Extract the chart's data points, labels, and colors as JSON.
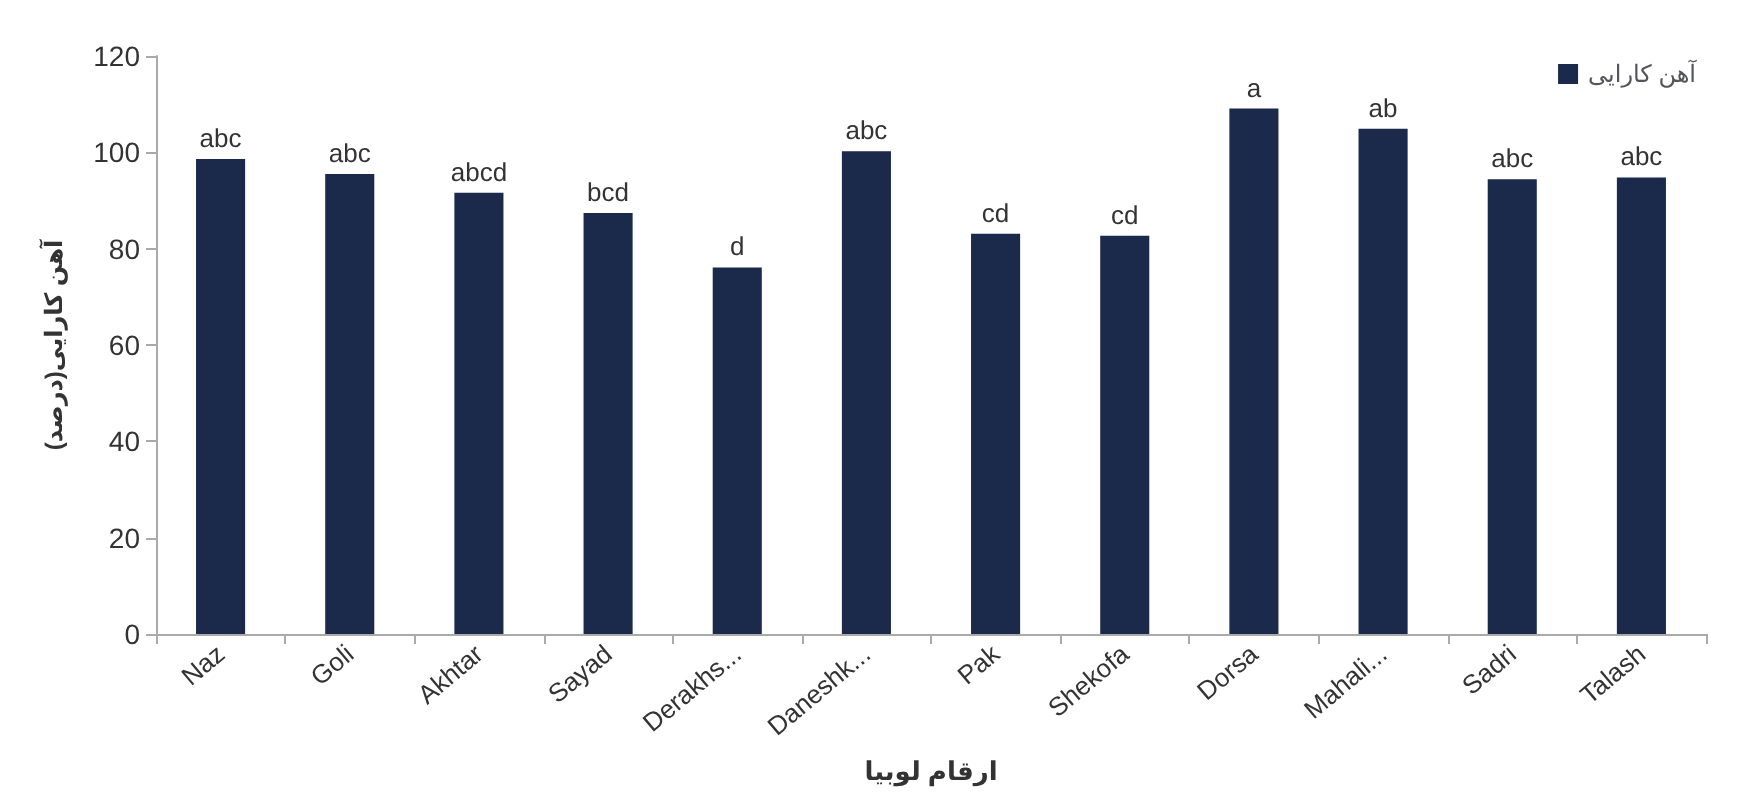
{
  "chart_data": {
    "type": "bar",
    "xlabel": "ارقام لوبیا",
    "ylabel": "آهن کارایی(درصد)",
    "categories": [
      "Naz",
      "Goli",
      "Akhtar",
      "Sayad",
      "Derakhs...",
      "Daneshk...",
      "Pak",
      "Shekofa",
      "Dorsa",
      "Mahali...",
      "Sadri",
      "Talash"
    ],
    "series": [
      {
        "name": "آهن کارایی",
        "color": "#1b2a4a",
        "values": [
          98.6,
          95.5,
          91.6,
          87.4,
          76.1,
          100.2,
          83.1,
          82.7,
          109.1,
          104.9,
          94.4,
          94.8
        ]
      }
    ],
    "ylim": [
      0,
      120
    ],
    "yticks": [
      0,
      20,
      40,
      60,
      80,
      100,
      120
    ],
    "grid": false,
    "legend": "top right",
    "annotations": [
      {
        "text": "abc",
        "x": "Naz",
        "y": 98.6
      },
      {
        "text": "abc",
        "x": "Goli",
        "y": 95.5
      },
      {
        "text": "abcd",
        "x": "Akhtar",
        "y": 91.6
      },
      {
        "text": "bcd",
        "x": "Sayad",
        "y": 87.4
      },
      {
        "text": "d",
        "x": "Derakhs...",
        "y": 76.1
      },
      {
        "text": "abc",
        "x": "Daneshk...",
        "y": 100.2
      },
      {
        "text": "cd",
        "x": "Pak",
        "y": 83.1
      },
      {
        "text": "cd",
        "x": "Shekofa",
        "y": 82.7
      },
      {
        "text": "a",
        "x": "Dorsa",
        "y": 109.1
      },
      {
        "text": "ab",
        "x": "Mahali...",
        "y": 104.9
      },
      {
        "text": "abc",
        "x": "Sadri",
        "y": 94.4
      },
      {
        "text": "abc",
        "x": "Talash",
        "y": 94.8
      }
    ]
  }
}
